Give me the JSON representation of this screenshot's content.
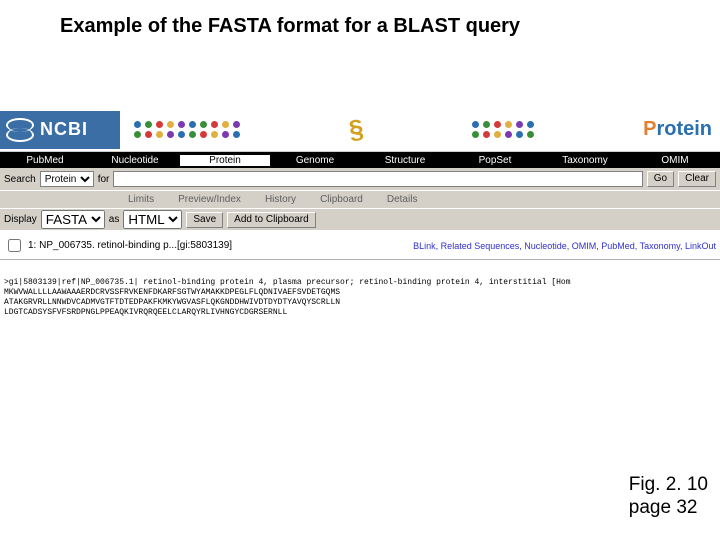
{
  "slide": {
    "title": "Example of the FASTA format for a BLAST query",
    "figure_line1": "Fig. 2. 10",
    "figure_line2": "page 32"
  },
  "logo": {
    "text": "NCBI"
  },
  "banner": {
    "dot_colors_top": [
      "#2a6fb0",
      "#3a8e3a",
      "#d43a3a",
      "#e0b040",
      "#7a3ab0",
      "#2a6fb0",
      "#3a8e3a",
      "#d43a3a",
      "#e0b040",
      "#7a3ab0",
      "#2a6fb0",
      "#3a8e3a",
      "#d43a3a",
      "#e0b040"
    ],
    "dot_colors_bottom": [
      "#3a8e3a",
      "#d43a3a",
      "#e0b040",
      "#7a3ab0",
      "#2a6fb0",
      "#3a8e3a",
      "#d43a3a",
      "#e0b040",
      "#7a3ab0",
      "#2a6fb0",
      "#3a8e3a",
      "#d43a3a",
      "#e0b040",
      "#7a3ab0"
    ],
    "squiggle": "§",
    "protein_prefix": "P",
    "protein_suffix": "rotein",
    "entrez_color": "#e08030",
    "protein_color": "#2a6fb0"
  },
  "nav": {
    "items": [
      "PubMed",
      "Nucleotide",
      "Protein",
      "Genome",
      "Structure",
      "PopSet",
      "Taxonomy",
      "OMIM"
    ],
    "active_index": 2
  },
  "search": {
    "label": "Search",
    "select_value": "Protein",
    "for_label": "for",
    "for_value": "",
    "go_label": "Go",
    "clear_label": "Clear"
  },
  "subtabs": {
    "items": [
      "Limits",
      "Preview/Index",
      "History",
      "Clipboard",
      "Details"
    ]
  },
  "display": {
    "label": "Display",
    "format_value": "FASTA",
    "as_label": "as",
    "as_value": "HTML",
    "save_label": "Save",
    "clip_label": "Add to Clipboard"
  },
  "result": {
    "checkbox_checked": false,
    "title": "1: NP_006735. retinol-binding p...[gi:5803139]",
    "links": "BLink, Related Sequences, Nucleotide, OMIM, PubMed, Taxonomy, LinkOut"
  },
  "fasta": {
    "header": ">gi|5803139|ref|NP_006735.1| retinol-binding protein 4, plasma precursor; retinol-binding protein 4, interstitial [Hom",
    "line1": "MKWVWALLLLAAWAAAERDCRVSSFRVKENFDKARFSGTWYAMAKKDPEGLFLQDNIVAEFSVDETGQMS",
    "line2": "ATAKGRVRLLNNWDVCADMVGTFTDTEDPAKFKMKYWGVASFLQKGNDDHWIVDTDYDTYAVQYSCRLLN",
    "line3": "LDGTCADSYSFVFSRDPNGLPPEAQKIVRQRQEELCLARQYRLIVHNGYCDGRSERNLL"
  }
}
